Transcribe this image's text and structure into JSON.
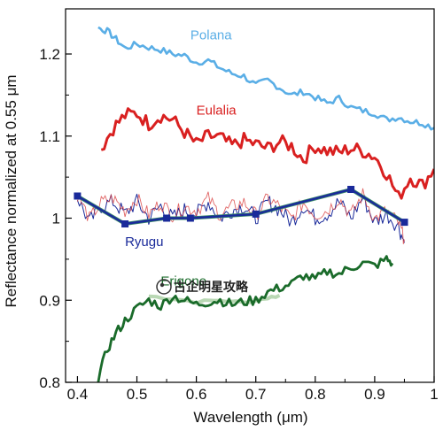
{
  "chart_data": {
    "type": "line",
    "xlabel": "Wavelength (μm)",
    "ylabel": "Reflectance normalized at 0.55 μm",
    "xlim": [
      0.38,
      1.0
    ],
    "ylim": [
      0.8,
      1.255
    ],
    "x_ticks": [
      0.4,
      0.5,
      0.6,
      0.7,
      0.8,
      0.9,
      1.0
    ],
    "x_tick_labels": [
      "0.4",
      "0.5",
      "0.6",
      "0.7",
      "0.8",
      "0.9",
      "1"
    ],
    "y_ticks": [
      0.8,
      0.9,
      1.0,
      1.1,
      1.2
    ],
    "y_tick_labels": [
      "0.8",
      "0.9",
      "1",
      "1.1",
      "1.2"
    ],
    "grid": false,
    "legend": "labels placed next to each curve",
    "series": [
      {
        "name": "Polana",
        "color": "#5aaee6",
        "x": [
          0.435,
          0.45,
          0.465,
          0.48,
          0.5,
          0.52,
          0.54,
          0.56,
          0.58,
          0.6,
          0.62,
          0.64,
          0.66,
          0.68,
          0.7,
          0.72,
          0.74,
          0.76,
          0.78,
          0.8,
          0.82,
          0.84,
          0.86,
          0.88,
          0.9,
          0.92,
          0.94,
          0.96,
          0.98,
          1.0
        ],
        "y": [
          1.232,
          1.228,
          1.218,
          1.207,
          1.212,
          1.208,
          1.205,
          1.2,
          1.198,
          1.19,
          1.192,
          1.183,
          1.176,
          1.173,
          1.162,
          1.168,
          1.159,
          1.15,
          1.154,
          1.147,
          1.14,
          1.146,
          1.135,
          1.131,
          1.128,
          1.12,
          1.123,
          1.118,
          1.116,
          1.11
        ]
      },
      {
        "name": "Eulalia",
        "color": "#d92020",
        "x": [
          0.44,
          0.46,
          0.48,
          0.5,
          0.52,
          0.54,
          0.56,
          0.58,
          0.6,
          0.62,
          0.64,
          0.66,
          0.68,
          0.7,
          0.72,
          0.74,
          0.76,
          0.78,
          0.8,
          0.82,
          0.84,
          0.86,
          0.88,
          0.9,
          0.92,
          0.94,
          0.96,
          0.98,
          1.0
        ],
        "y": [
          1.085,
          1.11,
          1.125,
          1.128,
          1.115,
          1.125,
          1.12,
          1.105,
          1.09,
          1.1,
          1.098,
          1.088,
          1.095,
          1.09,
          1.085,
          1.093,
          1.088,
          1.072,
          1.088,
          1.082,
          1.08,
          1.085,
          1.082,
          1.075,
          1.055,
          1.025,
          1.05,
          1.04,
          1.06
        ]
      },
      {
        "name": "Ryugu",
        "color": "#1a2a9a",
        "x": [
          0.4,
          0.42,
          0.44,
          0.46,
          0.48,
          0.5,
          0.52,
          0.54,
          0.56,
          0.58,
          0.6,
          0.62,
          0.64,
          0.66,
          0.68,
          0.7,
          0.72,
          0.74,
          0.76,
          0.78,
          0.8,
          0.82,
          0.84,
          0.86,
          0.88,
          0.9,
          0.92,
          0.94,
          0.95
        ],
        "y": [
          1.025,
          0.995,
          1.015,
          1.02,
          1.005,
          1.02,
          1.0,
          1.015,
          1.0,
          1.01,
          1.005,
          1.02,
          1.0,
          1.01,
          1.015,
          1.0,
          1.02,
          1.01,
          0.995,
          1.015,
          1.0,
          1.005,
          1.02,
          1.0,
          1.025,
          0.995,
          1.005,
          0.99,
          0.97
        ]
      },
      {
        "name": "Erigone",
        "color": "#1a6b2a",
        "x": [
          0.435,
          0.45,
          0.465,
          0.48,
          0.5,
          0.52,
          0.54,
          0.56,
          0.58,
          0.6,
          0.62,
          0.64,
          0.66,
          0.68,
          0.7,
          0.72,
          0.74,
          0.76,
          0.78,
          0.8,
          0.82,
          0.84,
          0.86,
          0.88,
          0.9,
          0.92,
          0.93
        ],
        "y": [
          0.805,
          0.84,
          0.86,
          0.875,
          0.89,
          0.9,
          0.893,
          0.905,
          0.9,
          0.895,
          0.898,
          0.9,
          0.895,
          0.898,
          0.9,
          0.91,
          0.915,
          0.92,
          0.93,
          0.925,
          0.935,
          0.932,
          0.94,
          0.945,
          0.942,
          0.95,
          0.945
        ]
      },
      {
        "name": "",
        "color": "#1a2a9a",
        "marker": "square",
        "x": [
          0.4,
          0.48,
          0.55,
          0.59,
          0.7,
          0.86,
          0.95
        ],
        "y": [
          1.027,
          0.993,
          1.0,
          1.0,
          1.005,
          1.035,
          0.995
        ]
      }
    ]
  },
  "watermark": {
    "text": "古企明星攻略",
    "icon": "circle-logo-icon"
  }
}
